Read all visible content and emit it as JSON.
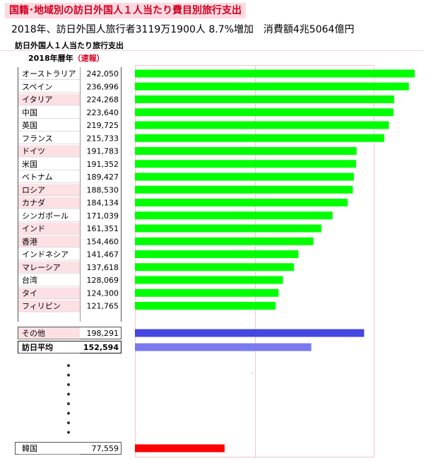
{
  "title": "国籍･地域別の訪日外国人１人当たり費目別旅行支出",
  "subtitle": "2018年、訪日外国人旅行者3119万1900人 8.7%増加　消費額4兆5064億円",
  "chart_label": "訪日外国人１人当たり旅行支出",
  "year_label": "2018年暦年",
  "prelim_label": "（速報）",
  "colors": {
    "country_bar": "#00ff00",
    "other_bar": "#4646e0",
    "average_bar": "#7a7af0",
    "korea_bar": "#ff0000",
    "highlight_row": "#fde0e4",
    "title_text": "#d0001f"
  },
  "chart_data": {
    "type": "bar",
    "orientation": "horizontal",
    "unit": "円",
    "xlim": [
      0,
      242050
    ],
    "rows": [
      {
        "name": "オーストラリア",
        "value": 242050,
        "label": "242,050",
        "highlight": false
      },
      {
        "name": "スペイン",
        "value": 236996,
        "label": "236,996",
        "highlight": false
      },
      {
        "name": "イタリア",
        "value": 224268,
        "label": "224,268",
        "highlight": true
      },
      {
        "name": "中国",
        "value": 223640,
        "label": "223,640",
        "highlight": false
      },
      {
        "name": "英国",
        "value": 219725,
        "label": "219,725",
        "highlight": false
      },
      {
        "name": "フランス",
        "value": 215733,
        "label": "215,733",
        "highlight": false
      },
      {
        "name": "ドイツ",
        "value": 191783,
        "label": "191,783",
        "highlight": true
      },
      {
        "name": "米国",
        "value": 191352,
        "label": "191,352",
        "highlight": false
      },
      {
        "name": "ベトナム",
        "value": 189427,
        "label": "189,427",
        "highlight": false
      },
      {
        "name": "ロシア",
        "value": 188530,
        "label": "188,530",
        "highlight": true
      },
      {
        "name": "カナダ",
        "value": 184134,
        "label": "184,134",
        "highlight": true
      },
      {
        "name": "シンガポール",
        "value": 171039,
        "label": "171,039",
        "highlight": false
      },
      {
        "name": "インド",
        "value": 161351,
        "label": "161,351",
        "highlight": true
      },
      {
        "name": "香港",
        "value": 154460,
        "label": "154,460",
        "highlight": true
      },
      {
        "name": "インドネシア",
        "value": 141467,
        "label": "141,467",
        "highlight": false
      },
      {
        "name": "マレーシア",
        "value": 137618,
        "label": "137,618",
        "highlight": true
      },
      {
        "name": "台湾",
        "value": 128069,
        "label": "128,069",
        "highlight": false
      },
      {
        "name": "タイ",
        "value": 124300,
        "label": "124,300",
        "highlight": true
      },
      {
        "name": "フィリピン",
        "value": 121765,
        "label": "121,765",
        "highlight": true
      }
    ],
    "other": {
      "name": "その他",
      "value": 198291,
      "label": "198,291"
    },
    "average": {
      "name": "訪日平均",
      "value": 152594,
      "label": "152,594"
    },
    "korea": {
      "name": "韓国",
      "value": 77559,
      "label": "77,559"
    }
  }
}
